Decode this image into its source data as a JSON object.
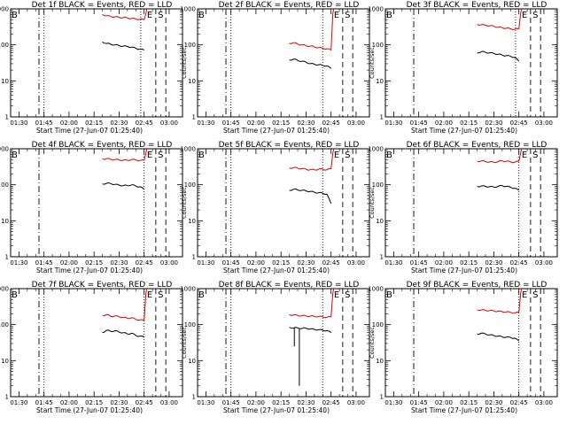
{
  "figure": {
    "color_events": "#000000",
    "color_lld": "#dd0000",
    "y_tick_labels": [
      "1",
      "10",
      "100",
      "1000"
    ],
    "x_tick_labels": [
      "01:30",
      "01:45",
      "02:00",
      "02:15",
      "02:30",
      "02:45",
      "03:00"
    ],
    "ylabel": "Counts/sec",
    "xlabel": "Start Time (27-Jun-07 01:25:40)",
    "marker_left": "B",
    "marker_e": "E",
    "marker_s": "S"
  },
  "chart_data": [
    {
      "type": "line",
      "title": "Det 1f BLACK = Events, RED = LLD",
      "xlabel": "Start Time (27-Jun-07 01:25:40)",
      "ylabel": "Counts/sec",
      "x_range": [
        "01:25",
        "03:08"
      ],
      "ylim": [
        1,
        1000
      ],
      "y_scale": "log",
      "x_time_range": [
        "02:20",
        "02:45"
      ],
      "series": [
        {
          "name": "Events",
          "values": [
            120,
            110,
            104,
            100,
            96,
            92,
            90,
            86,
            80,
            76,
            72
          ]
        },
        {
          "name": "LLD",
          "values": [
            700,
            640,
            610,
            600,
            580,
            570,
            560,
            540,
            520,
            510,
            500
          ]
        }
      ],
      "lld_rise_to": 1000,
      "dashdot_line": "01:42",
      "dotted_lines": [
        "01:45",
        "02:43"
      ],
      "dashed_lines": [
        "02:52",
        "02:58"
      ]
    },
    {
      "type": "line",
      "title": "Det 2f BLACK = Events, RED = LLD",
      "xlabel": "Start Time (27-Jun-07 01:25:40)",
      "ylabel": "Counts/sec",
      "x_range": [
        "01:25",
        "03:08"
      ],
      "ylim": [
        1,
        1000
      ],
      "y_scale": "log",
      "x_time_range": [
        "02:20",
        "02:45"
      ],
      "series": [
        {
          "name": "Events",
          "values": [
            38,
            40,
            37,
            35,
            33,
            30,
            29,
            28,
            27,
            26,
            22
          ]
        },
        {
          "name": "LLD",
          "values": [
            110,
            115,
            105,
            100,
            95,
            92,
            88,
            84,
            80,
            78,
            72
          ]
        }
      ],
      "lld_rise_to": 1000,
      "dashdot_line": "01:42",
      "dotted_lines": [
        "01:45",
        "02:40"
      ],
      "dashed_lines": [
        "02:52",
        "02:58"
      ]
    },
    {
      "type": "line",
      "title": "Det 3f BLACK = Events, RED = LLD",
      "xlabel": "Start Time (27-Jun-07 01:25:40)",
      "ylabel": "Counts/sec",
      "x_range": [
        "01:25",
        "03:08"
      ],
      "ylim": [
        1,
        1000
      ],
      "y_scale": "log",
      "x_time_range": [
        "02:20",
        "02:45"
      ],
      "series": [
        {
          "name": "Events",
          "values": [
            60,
            65,
            62,
            60,
            58,
            55,
            52,
            50,
            48,
            45,
            35
          ]
        },
        {
          "name": "LLD",
          "values": [
            370,
            360,
            350,
            340,
            330,
            310,
            300,
            290,
            280,
            270,
            280
          ]
        }
      ],
      "lld_rise_to": 1000,
      "dashdot_line": "01:42",
      "dotted_lines": [
        "02:43"
      ],
      "dashed_lines": [
        "02:52",
        "02:58"
      ]
    },
    {
      "type": "line",
      "title": "Det 4f BLACK = Events, RED = LLD",
      "xlabel": "Start Time (27-Jun-07 01:25:40)",
      "ylabel": "Counts/sec",
      "x_range": [
        "01:25",
        "03:08"
      ],
      "ylim": [
        1,
        1000
      ],
      "y_scale": "log",
      "x_time_range": [
        "02:20",
        "02:45"
      ],
      "series": [
        {
          "name": "Events",
          "values": [
            105,
            110,
            108,
            102,
            98,
            95,
            95,
            100,
            92,
            88,
            75
          ]
        },
        {
          "name": "LLD",
          "values": [
            520,
            530,
            510,
            500,
            490,
            480,
            480,
            500,
            490,
            470,
            480
          ]
        }
      ],
      "lld_rise_to": 1000,
      "dashdot_line": "01:42",
      "dotted_lines": [
        "02:45"
      ],
      "dashed_lines": [
        "02:52",
        "02:58"
      ]
    },
    {
      "type": "line",
      "title": "Det 5f BLACK = Events, RED = LLD",
      "xlabel": "Start Time (27-Jun-07 01:25:40)",
      "ylabel": "Counts/sec",
      "x_range": [
        "01:25",
        "03:08"
      ],
      "ylim": [
        1,
        1000
      ],
      "y_scale": "log",
      "x_time_range": [
        "02:20",
        "02:45"
      ],
      "series": [
        {
          "name": "Events",
          "values": [
            70,
            75,
            72,
            70,
            68,
            65,
            62,
            60,
            58,
            55,
            30
          ]
        },
        {
          "name": "LLD",
          "values": [
            290,
            300,
            290,
            280,
            270,
            260,
            260,
            270,
            270,
            260,
            280
          ]
        }
      ],
      "lld_rise_to": 1000,
      "dashdot_line": "01:42",
      "dotted_lines": [
        "01:45",
        "02:40"
      ],
      "dashed_lines": [
        "02:52",
        "02:58"
      ]
    },
    {
      "type": "line",
      "title": "Det 6f BLACK = Events, RED = LLD",
      "xlabel": "Start Time (27-Jun-07 01:25:40)",
      "ylabel": "Counts/sec",
      "x_range": [
        "01:25",
        "03:08"
      ],
      "ylim": [
        1,
        1000
      ],
      "y_scale": "log",
      "x_time_range": [
        "02:20",
        "02:45"
      ],
      "series": [
        {
          "name": "Events",
          "values": [
            90,
            92,
            90,
            88,
            86,
            90,
            95,
            90,
            85,
            80,
            70
          ]
        },
        {
          "name": "LLD",
          "values": [
            450,
            460,
            440,
            430,
            420,
            440,
            460,
            450,
            430,
            420,
            450
          ]
        }
      ],
      "lld_rise_to": 1000,
      "dashdot_line": "01:42",
      "dotted_lines": [
        "02:45"
      ],
      "dashed_lines": [
        "02:52",
        "02:58"
      ]
    },
    {
      "type": "line",
      "title": "Det 7f BLACK = Events, RED = LLD",
      "xlabel": "Start Time (27-Jun-07 01:25:40)",
      "ylabel": "Counts/sec",
      "x_range": [
        "01:25",
        "03:08"
      ],
      "ylim": [
        1,
        1000
      ],
      "y_scale": "log",
      "x_time_range": [
        "02:20",
        "02:45"
      ],
      "series": [
        {
          "name": "Events",
          "values": [
            60,
            70,
            65,
            68,
            62,
            60,
            55,
            58,
            50,
            48,
            45
          ]
        },
        {
          "name": "LLD",
          "values": [
            180,
            190,
            170,
            175,
            165,
            160,
            150,
            155,
            140,
            135,
            130
          ]
        }
      ],
      "lld_rise_to": 1000,
      "dashdot_line": "01:42",
      "dotted_lines": [
        "01:45",
        "02:45"
      ],
      "dashed_lines": [
        "02:52",
        "02:58"
      ]
    },
    {
      "type": "line",
      "title": "Det 8f BLACK = Events, RED = LLD",
      "xlabel": "Start Time (27-Jun-07 01:25:40)",
      "ylabel": "Counts/sec",
      "x_range": [
        "01:25",
        "03:08"
      ],
      "ylim": [
        1,
        1000
      ],
      "y_scale": "log",
      "x_time_range": [
        "02:20",
        "02:45"
      ],
      "series": [
        {
          "name": "Events",
          "values": [
            85,
            80,
            82,
            78,
            80,
            76,
            74,
            72,
            70,
            68,
            60
          ]
        },
        {
          "name": "LLD",
          "values": [
            190,
            185,
            180,
            178,
            175,
            172,
            170,
            168,
            165,
            160,
            165
          ]
        }
      ],
      "events_dropouts": [
        25,
        2
      ],
      "lld_rise_to": 1000,
      "dashdot_line": "01:42",
      "dotted_lines": [
        "01:45",
        "02:40"
      ],
      "dashed_lines": [
        "02:52",
        "02:58"
      ]
    },
    {
      "type": "line",
      "title": "Det 9f BLACK = Events, RED = LLD",
      "xlabel": "Start Time (27-Jun-07 01:25:40)",
      "ylabel": "Counts/sec",
      "x_range": [
        "01:25",
        "03:08"
      ],
      "ylim": [
        1,
        1000
      ],
      "y_scale": "log",
      "x_time_range": [
        "02:20",
        "02:45"
      ],
      "series": [
        {
          "name": "Events",
          "values": [
            55,
            58,
            55,
            52,
            50,
            48,
            46,
            45,
            44,
            42,
            35
          ]
        },
        {
          "name": "LLD",
          "values": [
            260,
            255,
            250,
            245,
            240,
            235,
            230,
            225,
            220,
            210,
            220
          ]
        }
      ],
      "lld_rise_to": 1000,
      "dashdot_line": "01:42",
      "dotted_lines": [
        "02:45"
      ],
      "dashed_lines": [
        "02:52",
        "02:58"
      ]
    }
  ]
}
